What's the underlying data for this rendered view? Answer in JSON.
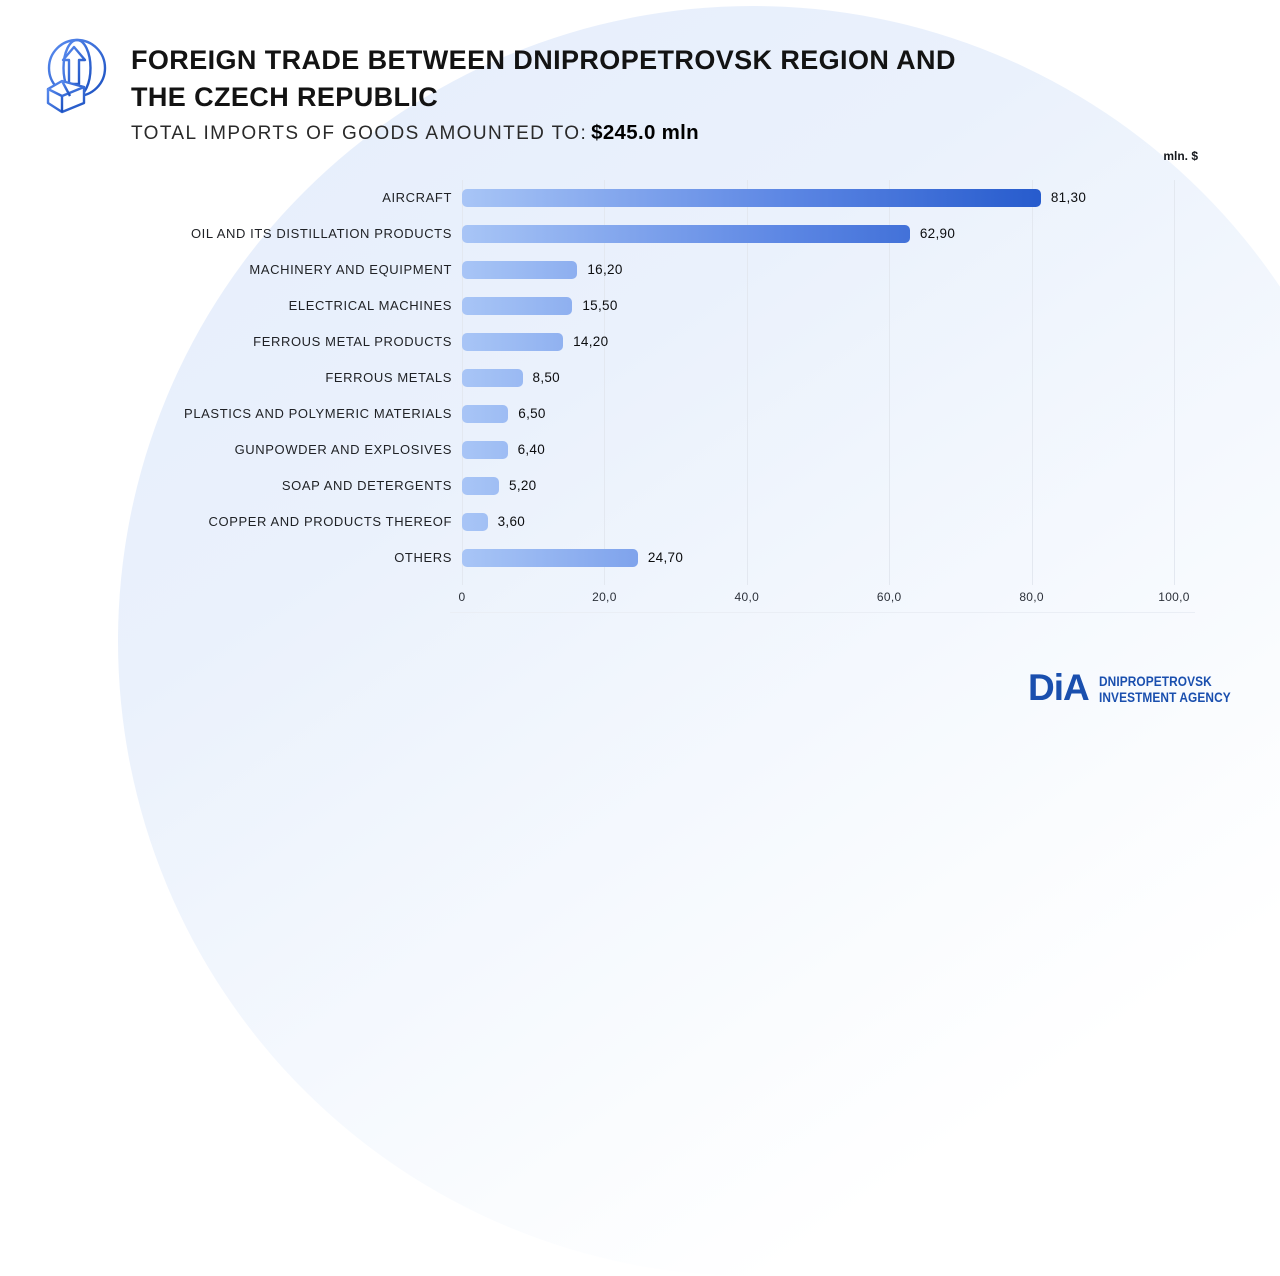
{
  "header": {
    "title_line1": "FOREIGN TRADE BETWEEN DNIPROPETROVSK REGION AND",
    "title_line2": "THE CZECH REPUBLIC",
    "subtitle_prefix": "TOTAL IMPORTS OF GOODS AMOUNTED TO:",
    "subtitle_value": "$245.0 mln"
  },
  "chart_data": {
    "type": "bar",
    "orientation": "horizontal",
    "title": "Foreign trade between Dnipropetrovsk region and the Czech Republic — imports of goods",
    "unit_label": "mln. $",
    "categories": [
      "AIRCRAFT",
      "OIL AND ITS DISTILLATION PRODUCTS",
      "MACHINERY AND EQUIPMENT",
      "ELECTRICAL MACHINES",
      "FERROUS METAL PRODUCTS",
      "FERROUS METALS",
      "PLASTICS AND POLYMERIC MATERIALS",
      "GUNPOWDER AND EXPLOSIVES",
      "SOAP AND DETERGENTS",
      "COPPER AND PRODUCTS THEREOF",
      "OTHERS"
    ],
    "values": [
      81.3,
      62.9,
      16.2,
      15.5,
      14.2,
      8.5,
      6.5,
      6.4,
      5.2,
      3.6,
      24.7
    ],
    "value_labels": [
      "81,30",
      "62,90",
      "16,20",
      "15,50",
      "14,20",
      "8,50",
      "6,50",
      "6,40",
      "5,20",
      "3,60",
      "24,70"
    ],
    "x_tick_labels": [
      "0",
      "20,0",
      "40,0",
      "60,0",
      "80,0",
      "100,0"
    ],
    "x_tick_values": [
      0,
      20,
      40,
      60,
      80,
      100
    ],
    "xlim": [
      0,
      100
    ],
    "grid": true,
    "legend": false,
    "bar_gradient": [
      "#a8c5f6",
      "#0b45c1"
    ]
  },
  "footer": {
    "logo_text": "DiA",
    "agency_line1": "DNIPROPETROVSK",
    "agency_line2": "INVESTMENT AGENCY"
  },
  "colors": {
    "accent_dark_blue": "#0b45c1",
    "accent_light_blue": "#a8c5f6",
    "logo_blue": "#1a4fae",
    "background_blob": "#e9f0fb",
    "gridline": "#e3e8f0",
    "title_text": "#131313"
  }
}
